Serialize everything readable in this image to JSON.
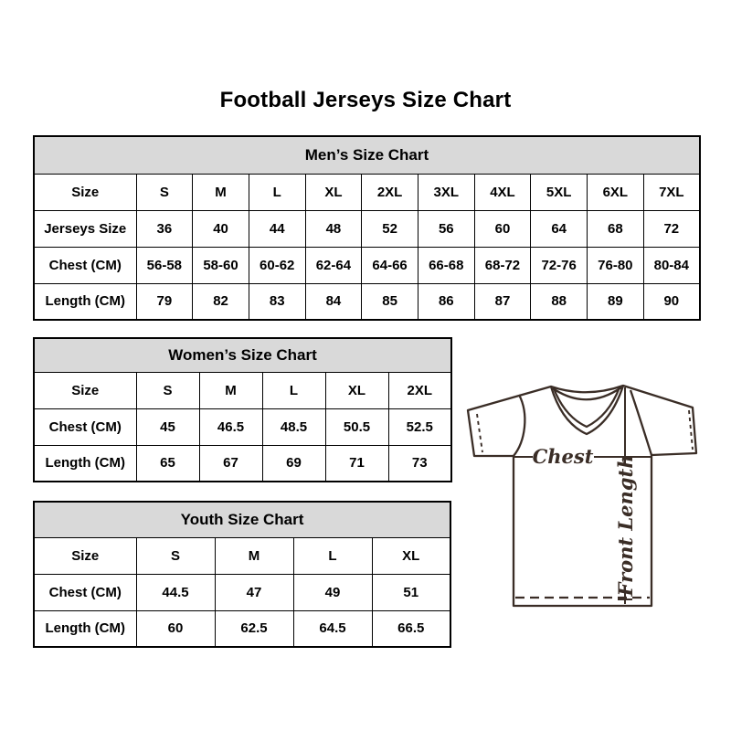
{
  "title": "Football Jerseys Size Chart",
  "tables": [
    {
      "id": "mens",
      "title": "Men’s Size Chart",
      "rows": [
        {
          "label": "Size",
          "values": [
            "S",
            "M",
            "L",
            "XL",
            "2XL",
            "3XL",
            "4XL",
            "5XL",
            "6XL",
            "7XL"
          ]
        },
        {
          "label": "Jerseys Size",
          "values": [
            "36",
            "40",
            "44",
            "48",
            "52",
            "56",
            "60",
            "64",
            "68",
            "72"
          ]
        },
        {
          "label": "Chest (CM)",
          "values": [
            "56-58",
            "58-60",
            "60-62",
            "62-64",
            "64-66",
            "66-68",
            "68-72",
            "72-76",
            "76-80",
            "80-84"
          ]
        },
        {
          "label": "Length (CM)",
          "values": [
            "79",
            "82",
            "83",
            "84",
            "85",
            "86",
            "87",
            "88",
            "89",
            "90"
          ]
        }
      ]
    },
    {
      "id": "womens",
      "title": "Women’s Size Chart",
      "rows": [
        {
          "label": "Size",
          "values": [
            "S",
            "M",
            "L",
            "XL",
            "2XL"
          ]
        },
        {
          "label": "Chest (CM)",
          "values": [
            "45",
            "46.5",
            "48.5",
            "50.5",
            "52.5"
          ]
        },
        {
          "label": "Length (CM)",
          "values": [
            "65",
            "67",
            "69",
            "71",
            "73"
          ]
        }
      ]
    },
    {
      "id": "youth",
      "title": "Youth Size Chart",
      "rows": [
        {
          "label": "Size",
          "values": [
            "S",
            "M",
            "L",
            "XL"
          ]
        },
        {
          "label": "Chest (CM)",
          "values": [
            "44.5",
            "47",
            "49",
            "51"
          ]
        },
        {
          "label": "Length (CM)",
          "values": [
            "60",
            "62.5",
            "64.5",
            "66.5"
          ]
        }
      ]
    }
  ],
  "diagram": {
    "chest_label": "Chest",
    "front_length_label": "Front Length"
  },
  "colors": {
    "header_bg": "#d9d9d9",
    "table_border": "#000000",
    "text": "#000000",
    "jersey_outline": "#3a2d26"
  }
}
